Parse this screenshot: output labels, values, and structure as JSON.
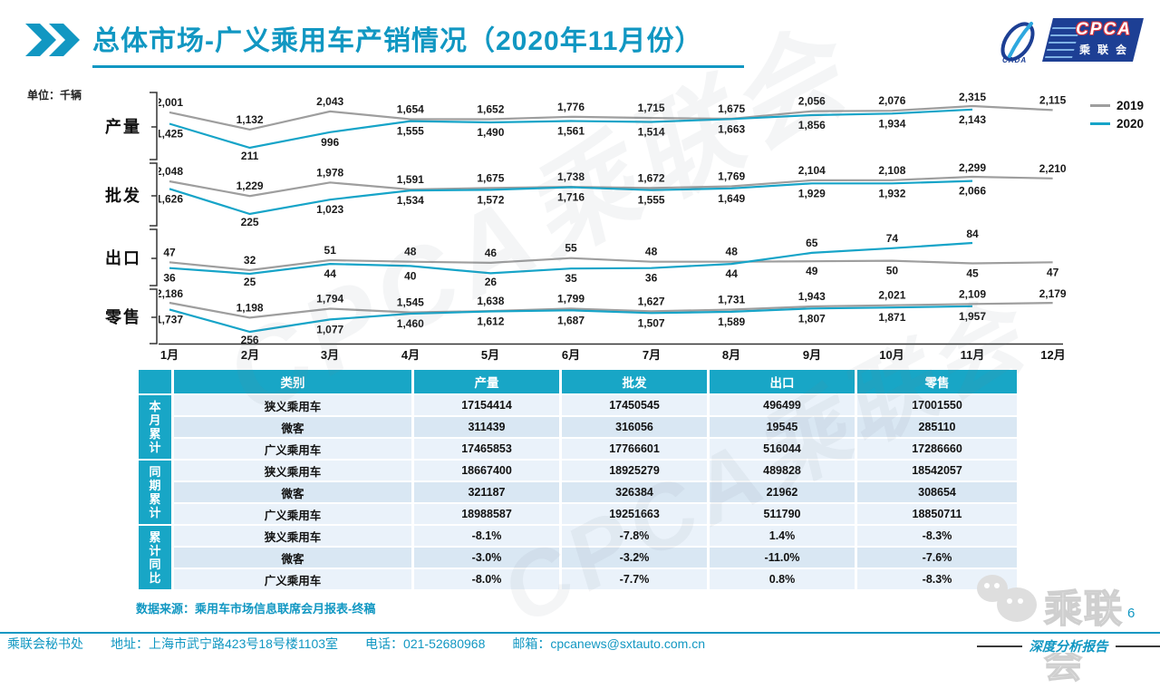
{
  "header": {
    "title": "总体市场-广义乘用车产销情况（2020年11月份）",
    "unit_label": "单位：千辆"
  },
  "logo": {
    "cpca_text": "CPCA",
    "cada_text": "CADA",
    "cn_text": "乘联会"
  },
  "colors": {
    "accent": "#1197C2",
    "line_2019": "#9E9E9E",
    "line_2020": "#16A4C8",
    "table_header_bg": "#18A6C6",
    "row_light": "#EAF2FA",
    "row_dark": "#D9E7F3"
  },
  "legend": {
    "items": [
      {
        "label": "2019",
        "color": "#9E9E9E"
      },
      {
        "label": "2020",
        "color": "#16A4C8"
      }
    ]
  },
  "chart_data": {
    "type": "line",
    "x_labels": [
      "1月",
      "2月",
      "3月",
      "4月",
      "5月",
      "6月",
      "7月",
      "8月",
      "9月",
      "10月",
      "11月",
      "12月"
    ],
    "unit": "千辆",
    "legend_position": "top-right",
    "charts": [
      {
        "name": "产量",
        "series": [
          {
            "name": "2019",
            "color": "#9E9E9E",
            "values": [
              2001,
              1132,
              2043,
              1654,
              1652,
              1776,
              1715,
              1675,
              2056,
              2076,
              2315,
              2115
            ]
          },
          {
            "name": "2020",
            "color": "#16A4C8",
            "values": [
              1425,
              211,
              996,
              1555,
              1490,
              1561,
              1514,
              1663,
              1856,
              1934,
              2143
            ]
          }
        ]
      },
      {
        "name": "批发",
        "series": [
          {
            "name": "2019",
            "color": "#9E9E9E",
            "values": [
              2048,
              1229,
              1978,
              1591,
              1675,
              1738,
              1672,
              1769,
              2104,
              2108,
              2299,
              2210
            ]
          },
          {
            "name": "2020",
            "color": "#16A4C8",
            "values": [
              1626,
              225,
              1023,
              1534,
              1572,
              1716,
              1555,
              1649,
              1929,
              1932,
              2066
            ]
          }
        ]
      },
      {
        "name": "出口",
        "series": [
          {
            "name": "2019",
            "color": "#9E9E9E",
            "values": [
              47,
              32,
              51,
              48,
              46,
              55,
              48,
              48,
              49,
              50,
              45,
              47
            ],
            "label_sides": [
              "a",
              "a",
              "a",
              "a",
              "a",
              "a",
              "a",
              "a",
              "b",
              "b",
              "b",
              "b"
            ]
          },
          {
            "name": "2020",
            "color": "#16A4C8",
            "values": [
              36,
              25,
              44,
              40,
              26,
              35,
              36,
              44,
              65,
              74,
              84
            ],
            "label_sides": [
              "b",
              "b",
              "b",
              "b",
              "b",
              "b",
              "b",
              "b",
              "a",
              "a",
              "a"
            ]
          }
        ]
      },
      {
        "name": "零售",
        "series": [
          {
            "name": "2019",
            "color": "#9E9E9E",
            "values": [
              2186,
              1198,
              1794,
              1545,
              1638,
              1799,
              1627,
              1731,
              1943,
              2021,
              2109,
              2179
            ]
          },
          {
            "name": "2020",
            "color": "#16A4C8",
            "values": [
              1737,
              256,
              1077,
              1460,
              1612,
              1687,
              1507,
              1589,
              1807,
              1871,
              1957
            ]
          }
        ]
      }
    ]
  },
  "table": {
    "columns": [
      "类别",
      "产量",
      "批发",
      "出口",
      "零售"
    ],
    "groups": [
      {
        "label": "本月累计",
        "rows": [
          [
            "狭义乘用车",
            "17154414",
            "17450545",
            "496499",
            "17001550"
          ],
          [
            "微客",
            "311439",
            "316056",
            "19545",
            "285110"
          ],
          [
            "广义乘用车",
            "17465853",
            "17766601",
            "516044",
            "17286660"
          ]
        ]
      },
      {
        "label": "同期累计",
        "rows": [
          [
            "狭义乘用车",
            "18667400",
            "18925279",
            "489828",
            "18542057"
          ],
          [
            "微客",
            "321187",
            "326384",
            "21962",
            "308654"
          ],
          [
            "广义乘用车",
            "18988587",
            "19251663",
            "511790",
            "18850711"
          ]
        ]
      },
      {
        "label": "累计同比",
        "rows": [
          [
            "狭义乘用车",
            "-8.1%",
            "-7.8%",
            "1.4%",
            "-8.3%"
          ],
          [
            "微客",
            "-3.0%",
            "-3.2%",
            "-11.0%",
            "-7.6%"
          ],
          [
            "广义乘用车",
            "-8.0%",
            "-7.7%",
            "0.8%",
            "-8.3%"
          ]
        ]
      }
    ]
  },
  "source_note": "数据来源：乘用车市场信息联席会月报表-终稿",
  "watermark": {
    "text": "CPCA乘联会",
    "logo_text": "乘联会"
  },
  "page_number": "6",
  "report_tag": "深度分析报告",
  "footer": {
    "secretariat": "乘联会秘书处",
    "address": "地址：上海市武宁路423号18号楼1103室",
    "phone": "电话：021-52680968",
    "email": "邮箱：cpcanews@sxtauto.com.cn"
  }
}
